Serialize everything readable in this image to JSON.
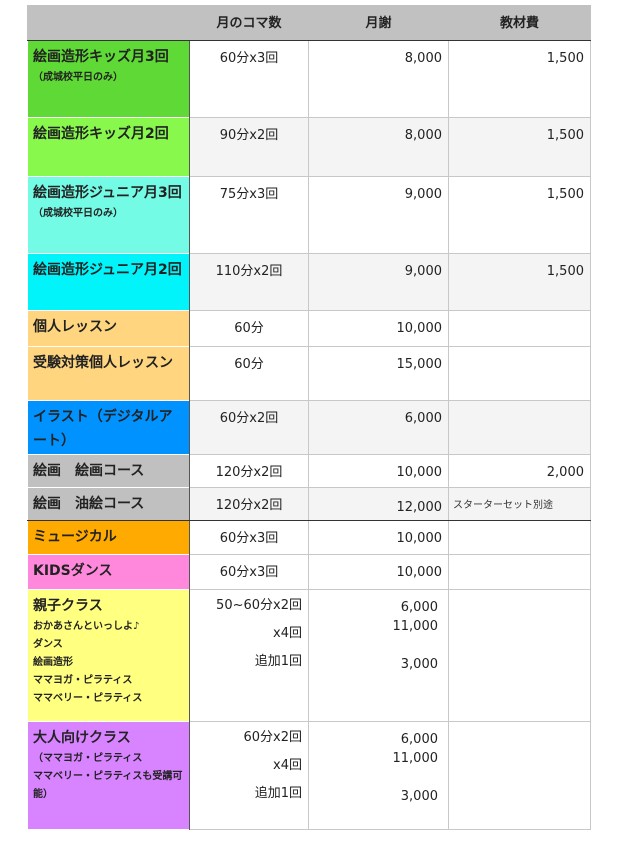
{
  "header": [
    "",
    "月のコマ数",
    "月謝",
    "教材費"
  ],
  "rows": [
    {
      "name": "絵画造形キッズ月3回",
      "sub": [
        "（成城校平日のみ）"
      ],
      "koma": "60分x3回",
      "fee": "8,000",
      "material": "1,500",
      "color": "#5fd935"
    },
    {
      "name": "絵画造形キッズ月2回",
      "sub": [],
      "koma": "90分x2回",
      "fee": "8,000",
      "material": "1,500",
      "color": "#88f84c"
    },
    {
      "name": "絵画造形ジュニア月3回",
      "sub": [
        "（成城校平日のみ）"
      ],
      "koma": "75分x3回",
      "fee": "9,000",
      "material": "1,500",
      "color": "#74fbe6"
    },
    {
      "name": "絵画造形ジュニア月2回",
      "sub": [],
      "koma": "110分x2回",
      "fee": "9,000",
      "material": "1,500",
      "color": "#00f4fa"
    },
    {
      "name": "個人レッスン",
      "sub": [],
      "koma": "60分",
      "fee": "10,000",
      "material": "",
      "color": "#ffd580"
    },
    {
      "name": "受験対策個人レッスン",
      "sub": [],
      "koma": "60分",
      "fee": "15,000",
      "material": "",
      "color": "#ffd580"
    },
    {
      "name": "イラスト（デジタルアート）",
      "sub": [],
      "koma": "60分x2回",
      "fee": "6,000",
      "material": "",
      "color": "#0093ff"
    },
    {
      "name": "絵画　絵画コース",
      "sub": [],
      "koma": "120分x2回",
      "fee": "10,000",
      "material": "2,000",
      "color": "#c0c0c0"
    },
    {
      "name": "絵画　油絵コース",
      "sub": [],
      "koma": "120分x2回",
      "fee": "12,000",
      "material": "スターターセット別途",
      "color": "#c0c0c0"
    },
    {
      "name": "ミュージカル",
      "sub": [],
      "koma": "60分x3回",
      "fee": "10,000",
      "material": "",
      "color": "#ffaa00"
    },
    {
      "name": "KIDSダンス",
      "sub": [],
      "koma": "60分x3回",
      "fee": "10,000",
      "material": "",
      "color": "#ff88dd"
    },
    {
      "name": "親子クラス",
      "sub": [
        "おかあさんといっしよ♪",
        "ダンス",
        "絵画造形",
        "ママヨガ・ピラティス",
        "ママベリー・ピラティス"
      ],
      "koma_lines": [
        "50~60分x2回",
        "x4回",
        "追加1回"
      ],
      "fee_lines": [
        "6,000",
        "11,000",
        "",
        "3,000"
      ],
      "material": "",
      "color": "#ffff80"
    },
    {
      "name": "大人向けクラス",
      "sub": [
        "（ママヨガ・ピラティス",
        "ママベリー・ピラティスも受講可能）"
      ],
      "koma_lines": [
        "60分x2回",
        "x4回",
        "追加1回"
      ],
      "fee_lines": [
        "6,000",
        "11,000",
        "",
        "3,000"
      ],
      "material": "",
      "color": "#d883ff"
    }
  ]
}
